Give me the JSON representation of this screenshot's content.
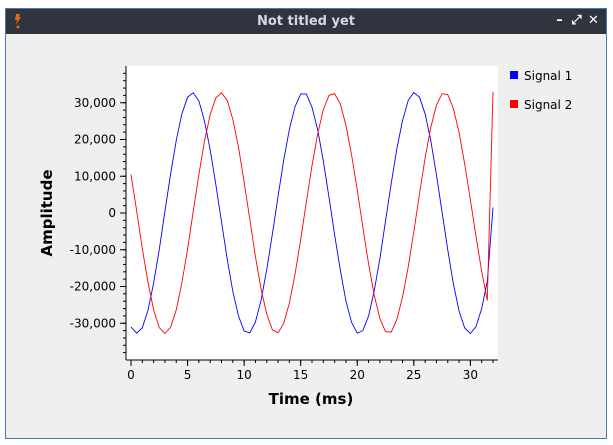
{
  "window": {
    "title": "Not titled yet",
    "controls": {
      "minimize": "–",
      "restore": "⤢",
      "close": "✕"
    }
  },
  "colors": {
    "titlebar": "#2f343f",
    "signal1": "#0000ff",
    "signal2": "#ff0000",
    "plot_bg": "#ffffff"
  },
  "chart_data": {
    "type": "line",
    "xlabel": "Time (ms)",
    "ylabel": "Amplitude",
    "xlim": [
      0,
      32
    ],
    "ylim": [
      -40000,
      40000
    ],
    "x_ticks": [
      0,
      5,
      10,
      15,
      20,
      25,
      30
    ],
    "x_tick_labels": [
      "0",
      "5",
      "10",
      "15",
      "20",
      "25",
      "30"
    ],
    "y_ticks": [
      30000,
      20000,
      10000,
      0,
      -10000,
      -20000,
      -30000
    ],
    "y_tick_labels": [
      "30,000",
      "20,000",
      "10,000",
      "0",
      "-10,000",
      "-20,000",
      "-30,000"
    ],
    "grid": false,
    "legend_position": "right",
    "series": [
      {
        "name": "Signal 1",
        "color": "#0000ff",
        "x": [
          0,
          0.5,
          1,
          1.5,
          2,
          2.5,
          3,
          3.5,
          4,
          4.5,
          5,
          5.5,
          6,
          6.5,
          7,
          7.5,
          8,
          8.5,
          9,
          9.5,
          10,
          10.5,
          11,
          11.5,
          12,
          12.5,
          13,
          13.5,
          14,
          14.5,
          15,
          15.5,
          16,
          16.5,
          17,
          17.5,
          18,
          18.5,
          19,
          19.5,
          20,
          20.5,
          21,
          21.5,
          22,
          22.5,
          23,
          23.5,
          24,
          24.5,
          25,
          25.5,
          26,
          26.5,
          27,
          27.5,
          28,
          28.5,
          29,
          29.5,
          30,
          30.5,
          31,
          31.5,
          32
        ],
        "y": [
          -31000,
          -32700,
          -31200,
          -26500,
          -19100,
          -9900,
          400,
          10600,
          19800,
          27000,
          31500,
          32700,
          30500,
          25000,
          17200,
          7800,
          -2400,
          -12500,
          -21300,
          -28000,
          -32100,
          -32600,
          -29700,
          -23700,
          -15300,
          -5700,
          4600,
          14400,
          22800,
          28900,
          32400,
          32400,
          28800,
          22600,
          14200,
          4300,
          -5900,
          -15500,
          -23900,
          -29800,
          -32700,
          -32000,
          -28000,
          -21200,
          -12400,
          -2200,
          8000,
          17400,
          25100,
          30600,
          32800,
          31500,
          27000,
          19700,
          10400,
          200,
          -10100,
          -19300,
          -26700,
          -31300,
          -32800,
          -30900,
          -26000,
          -18600,
          1500
        ]
      },
      {
        "name": "Signal 2",
        "color": "#ff0000",
        "x": [
          0,
          0.5,
          1,
          1.5,
          2,
          2.5,
          3,
          3.5,
          4,
          4.5,
          5,
          5.5,
          6,
          6.5,
          7,
          7.5,
          8,
          8.5,
          9,
          9.5,
          10,
          10.5,
          11,
          11.5,
          12,
          12.5,
          13,
          13.5,
          14,
          14.5,
          15,
          15.5,
          16,
          16.5,
          17,
          17.5,
          18,
          18.5,
          19,
          19.5,
          20,
          20.5,
          21,
          21.5,
          22,
          22.5,
          23,
          23.5,
          24,
          24.5,
          25,
          25.5,
          26,
          26.5,
          27,
          27.5,
          28,
          28.5,
          29,
          29.5,
          30,
          30.5,
          31,
          31.5,
          32
        ],
        "y": [
          10500,
          500,
          -9700,
          -18900,
          -26300,
          -31200,
          -32800,
          -31100,
          -26300,
          -19000,
          -9800,
          400,
          10500,
          19600,
          26800,
          31300,
          32700,
          30700,
          25500,
          17900,
          8500,
          -1700,
          -11800,
          -20700,
          -27600,
          -31800,
          -32600,
          -30000,
          -24500,
          -16700,
          -7200,
          2900,
          12900,
          21500,
          28100,
          32000,
          32500,
          29700,
          23900,
          15800,
          6200,
          -4000,
          -13900,
          -22300,
          -28700,
          -32300,
          -32400,
          -29000,
          -22900,
          -14700,
          -5100,
          5200,
          15000,
          23300,
          29300,
          32500,
          32200,
          28400,
          21900,
          13300,
          3600,
          -6400,
          -15900,
          -23800,
          33000
        ]
      }
    ]
  }
}
